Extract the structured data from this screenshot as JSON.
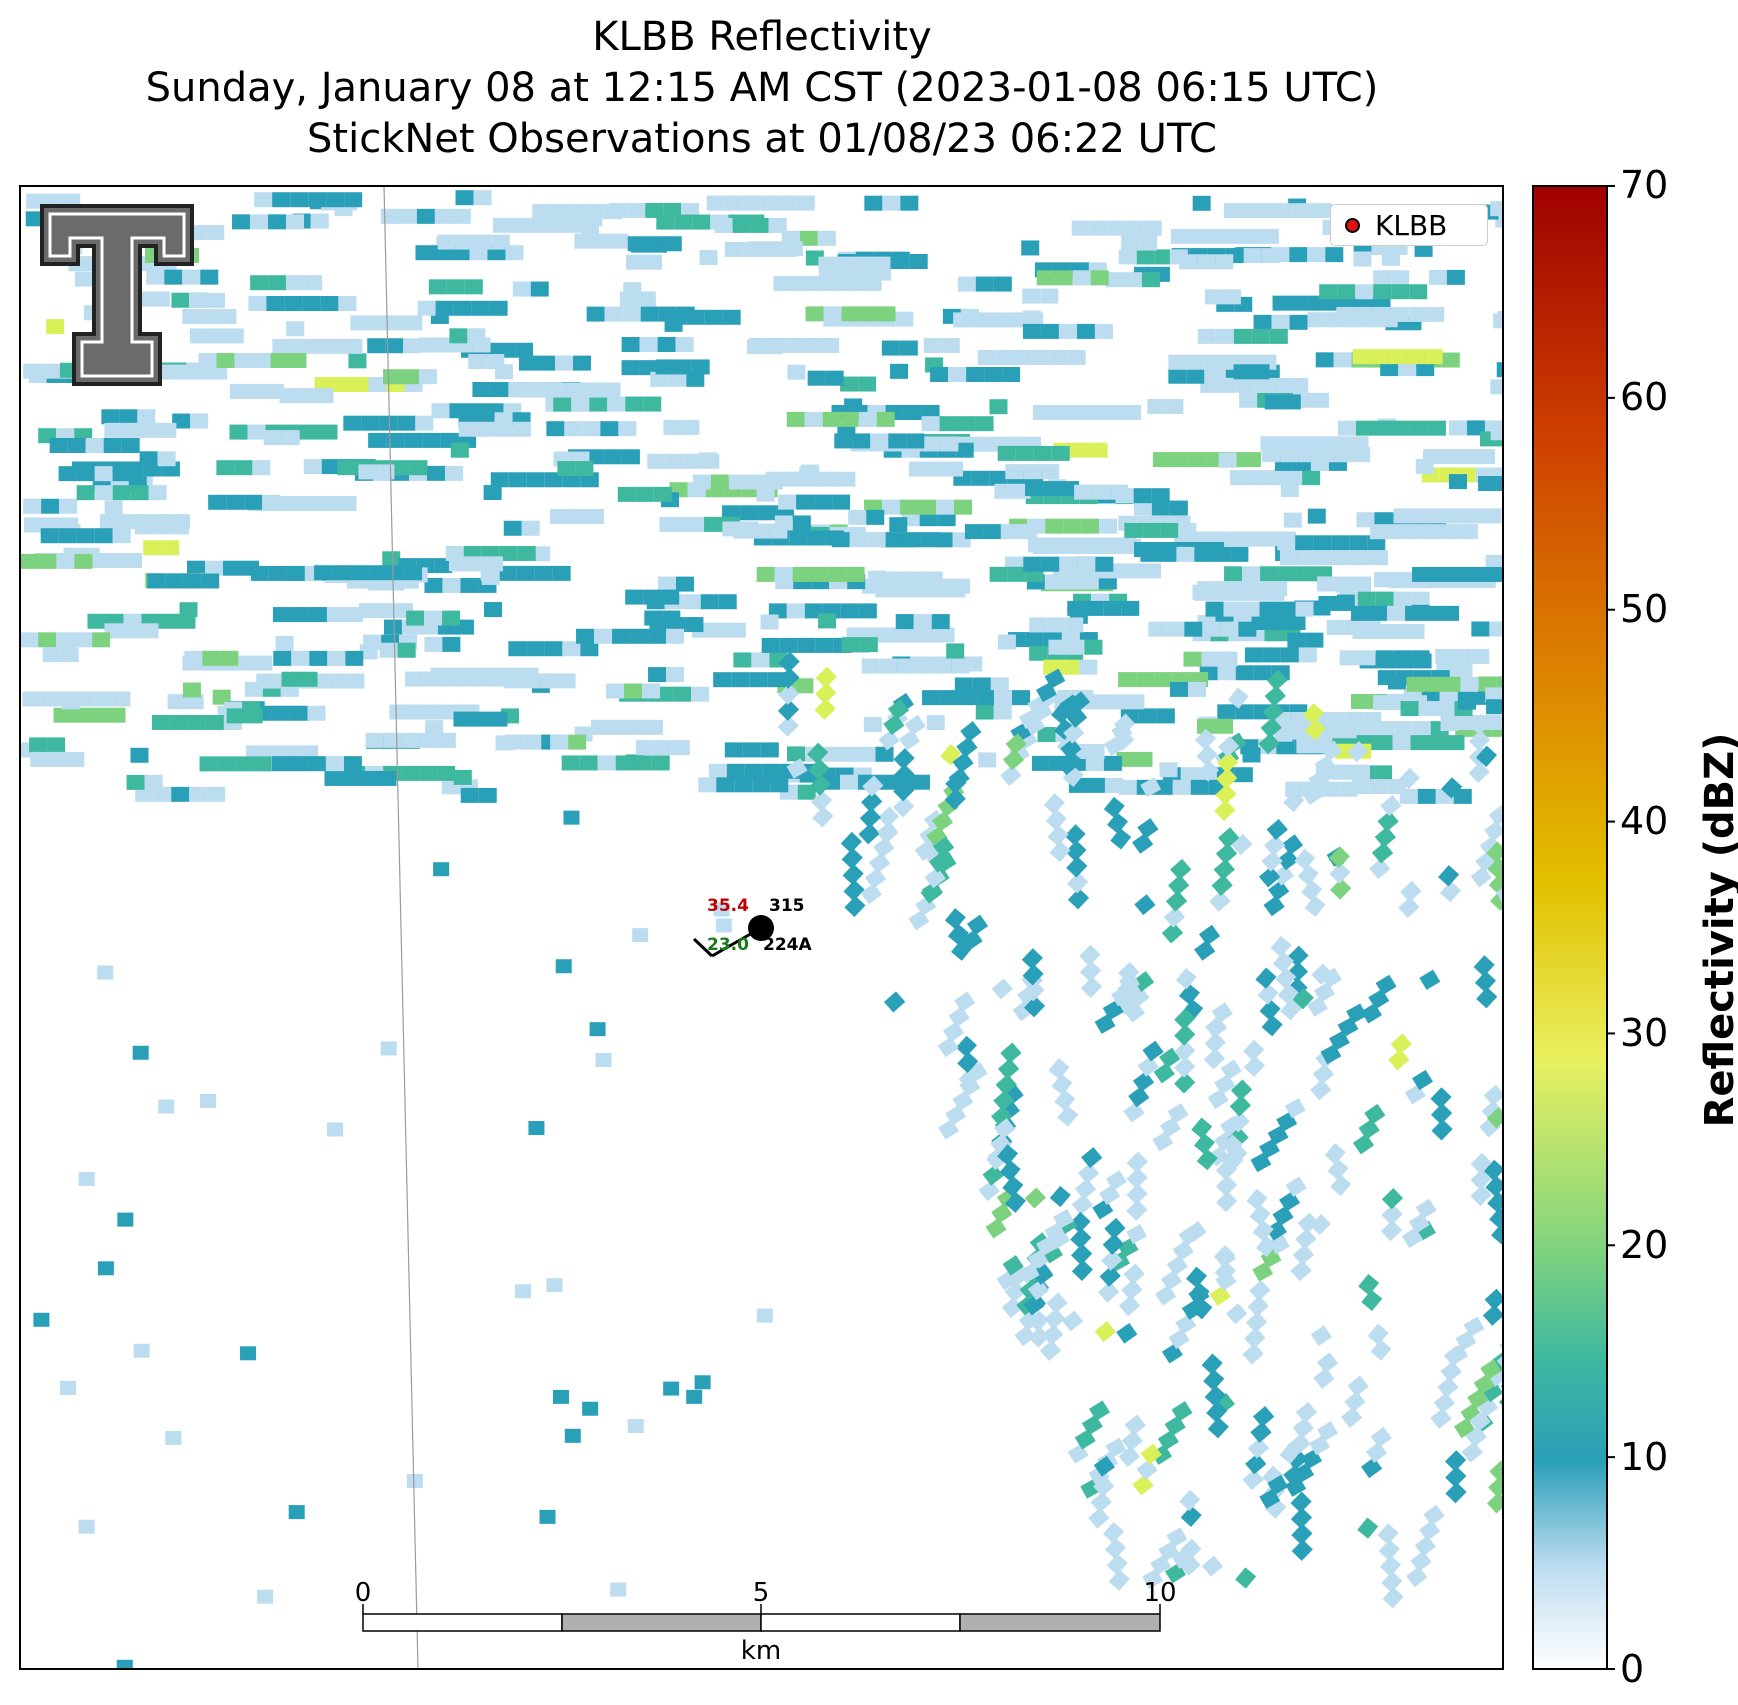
{
  "title": {
    "line1": "KLBB Reflectivity",
    "line2": "Sunday, January 08 at 12:15 AM CST (2023-01-08 06:15 UTC)",
    "line3": "StickNet Observations at 01/08/23 06:22 UTC"
  },
  "legend": {
    "label": "KLBB",
    "marker_color": "#e01010"
  },
  "colorbar": {
    "label": "Reflectivity (dBZ)",
    "ticks": [
      "0",
      "10",
      "20",
      "30",
      "40",
      "50",
      "60",
      "70"
    ],
    "range": [
      0,
      70
    ],
    "colors": [
      "#ffffff",
      "#bcdcf0",
      "#2a9fb8",
      "#3fb8a0",
      "#7dd27f",
      "#d9f058",
      "#e8c800",
      "#e08a00",
      "#d04a00",
      "#a00000"
    ]
  },
  "scale_bar": {
    "ticks": [
      "0",
      "5",
      "10"
    ],
    "unit": "km"
  },
  "station": {
    "temperature": "35.4",
    "dewpoint": "23.0",
    "id_top": "315",
    "id_bottom": "224A",
    "temp_color": "#c00000",
    "dew_color": "#1a7a1a"
  },
  "logo": {
    "name": "Texas Tech Double T"
  }
}
